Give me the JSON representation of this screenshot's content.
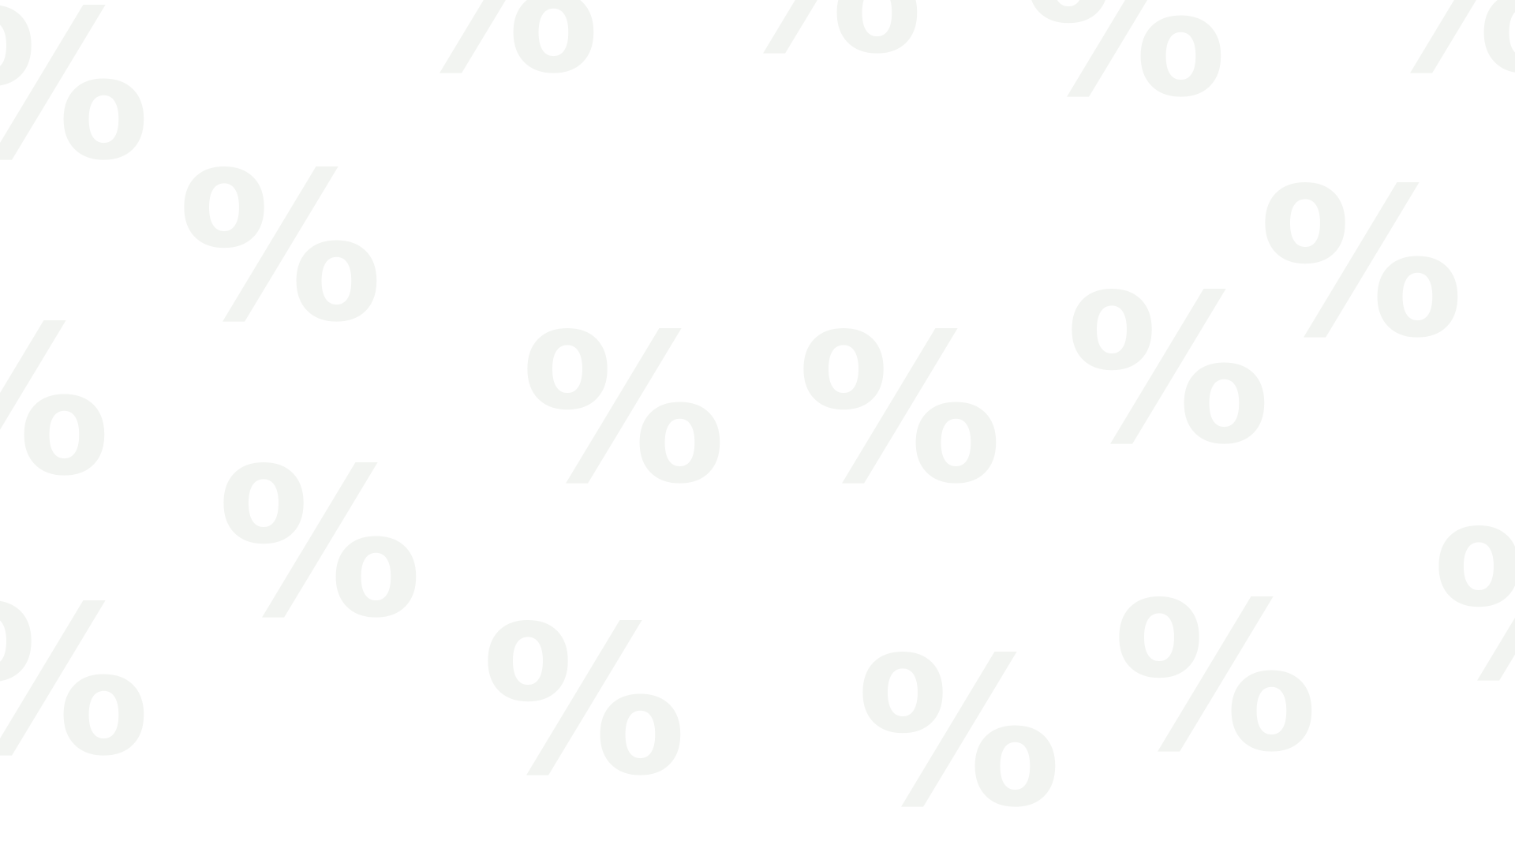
{
  "background": {
    "color": "#ffffff",
    "symbol_color": "#f2f4f1",
    "symbol": "%"
  }
}
